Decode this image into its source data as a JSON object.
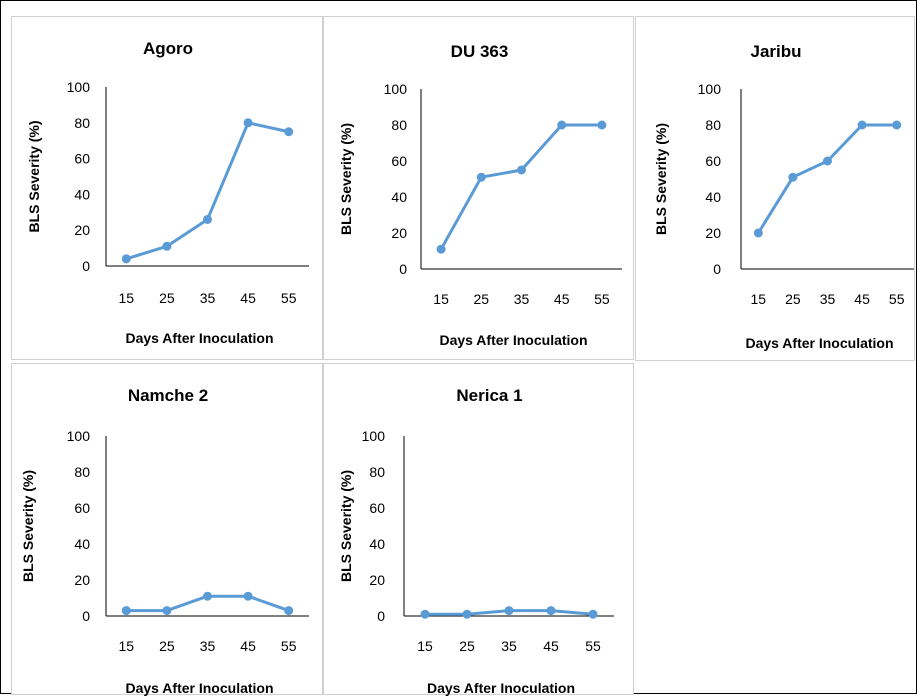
{
  "chart_data": [
    {
      "type": "line",
      "title": "Agoro",
      "xlabel": "Days After Inoculation",
      "ylabel": "BLS Severity (%)",
      "categories": [
        "15",
        "25",
        "35",
        "45",
        "55"
      ],
      "values": [
        4,
        11,
        26,
        80,
        75
      ],
      "ylim": [
        0,
        100
      ],
      "yticks": [
        "0",
        "20",
        "40",
        "60",
        "80",
        "100"
      ],
      "grid": false
    },
    {
      "type": "line",
      "title": "DU 363",
      "xlabel": "Days After Inoculation",
      "ylabel": "BLS Severity (%)",
      "categories": [
        "15",
        "25",
        "35",
        "45",
        "55"
      ],
      "values": [
        11,
        51,
        55,
        80,
        80
      ],
      "ylim": [
        0,
        100
      ],
      "yticks": [
        "0",
        "20",
        "40",
        "60",
        "80",
        "100"
      ],
      "grid": false
    },
    {
      "type": "line",
      "title": "Jaribu",
      "xlabel": "Days After Inoculation",
      "ylabel": "BLS Severity (%)",
      "categories": [
        "15",
        "25",
        "35",
        "45",
        "55"
      ],
      "values": [
        20,
        51,
        60,
        80,
        80
      ],
      "ylim": [
        0,
        100
      ],
      "yticks": [
        "0",
        "20",
        "40",
        "60",
        "80",
        "100"
      ],
      "grid": false
    },
    {
      "type": "line",
      "title": "Namche 2",
      "xlabel": "Days After Inoculation",
      "ylabel": "BLS Severity (%)",
      "categories": [
        "15",
        "25",
        "35",
        "45",
        "55"
      ],
      "values": [
        3,
        3,
        11,
        11,
        3
      ],
      "ylim": [
        0,
        100
      ],
      "yticks": [
        "0",
        "20",
        "40",
        "60",
        "80",
        "100"
      ],
      "grid": false
    },
    {
      "type": "line",
      "title": "Nerica 1",
      "xlabel": "Days After Inoculation",
      "ylabel": "BLS Severity (%)",
      "categories": [
        "15",
        "25",
        "35",
        "45",
        "55"
      ],
      "values": [
        1,
        1,
        3,
        3,
        1
      ],
      "ylim": [
        0,
        100
      ],
      "yticks": [
        "0",
        "20",
        "40",
        "60",
        "80",
        "100"
      ],
      "grid": false
    }
  ],
  "colors": {
    "series": "#5b9bd5",
    "axis": "#000000",
    "panel_border": "#d0d0d0",
    "frame": "#000000"
  }
}
